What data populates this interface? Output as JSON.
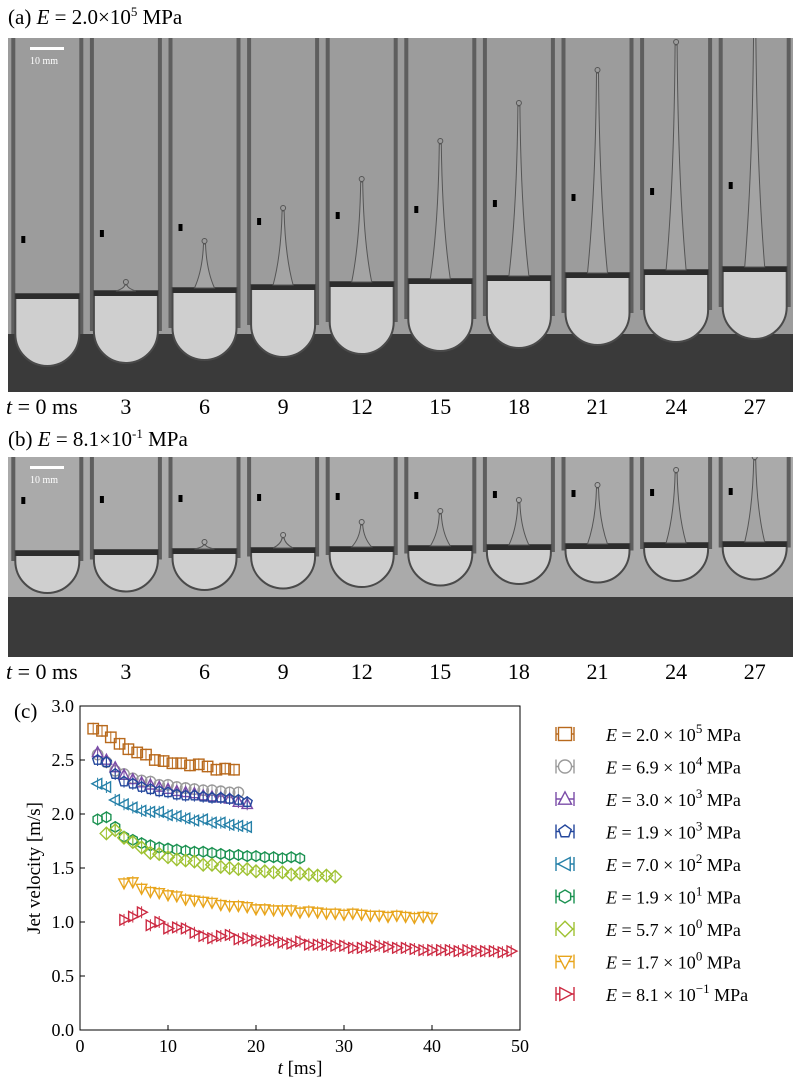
{
  "panel_a": {
    "label_prefix": "(a) ",
    "var": "E",
    "value_text": " = 2.0×10",
    "exp": "5",
    "unit": " MPa",
    "scale_bar": "10 mm",
    "time_label_var": "t",
    "time_label_rest": " = 0 ms",
    "times": [
      "3",
      "6",
      "9",
      "12",
      "15",
      "18",
      "21",
      "24",
      "27"
    ]
  },
  "panel_b": {
    "label_prefix": "(b) ",
    "var": "E",
    "value_text": " = 8.1×10",
    "exp": "-1",
    "unit": " MPa",
    "scale_bar": "10 mm",
    "time_label_var": "t",
    "time_label_rest": " = 0 ms",
    "times": [
      "3",
      "6",
      "9",
      "12",
      "15",
      "18",
      "21",
      "24",
      "27"
    ]
  },
  "colors": {
    "background_a": "#9a9a9a",
    "background_b": "#a8a8a8",
    "liquid": "#c9c9c9"
  },
  "chart_data": {
    "type": "scatter",
    "panel_label": "(c)",
    "xlabel_var": "t",
    "xlabel_unit": " [ms]",
    "ylabel": "Jet velocity [m/s]",
    "xlim": [
      0,
      50
    ],
    "ylim": [
      0.0,
      3.0
    ],
    "xticks": [
      0,
      10,
      20,
      30,
      40,
      50
    ],
    "yticks": [
      "0.0",
      "0.5",
      "1.0",
      "1.5",
      "2.0",
      "2.5",
      "3.0"
    ],
    "legend_position": "right",
    "series": [
      {
        "name": "E = 2.0 × 10^5 MPa",
        "mantissa": "2.0",
        "exp": "5",
        "marker": "square",
        "color": "#b8691c",
        "x": [
          1.5,
          2.5,
          3.5,
          4.5,
          5.5,
          6.5,
          7.5,
          8.5,
          9.5,
          10.5,
          11.5,
          12.5,
          13.5,
          14.5,
          15.5,
          16.5,
          17.5
        ],
        "y": [
          2.79,
          2.77,
          2.71,
          2.65,
          2.6,
          2.57,
          2.55,
          2.5,
          2.49,
          2.47,
          2.47,
          2.45,
          2.46,
          2.44,
          2.41,
          2.42,
          2.41
        ]
      },
      {
        "name": "E = 6.9 × 10^4 MPa",
        "mantissa": "6.9",
        "exp": "4",
        "marker": "circle",
        "color": "#9a9a9a",
        "x": [
          2,
          3,
          4,
          5,
          6,
          7,
          8,
          9,
          10,
          11,
          12,
          13,
          14,
          15,
          16,
          17,
          18
        ],
        "y": [
          2.55,
          2.48,
          2.4,
          2.37,
          2.33,
          2.31,
          2.3,
          2.27,
          2.27,
          2.25,
          2.24,
          2.23,
          2.22,
          2.22,
          2.21,
          2.2,
          2.2
        ]
      },
      {
        "name": "E = 3.0 × 10^3 MPa",
        "mantissa": "3.0",
        "exp": "3",
        "marker": "triangle-up",
        "color": "#7b4ca8",
        "x": [
          2,
          3,
          4,
          5,
          6,
          7,
          8,
          9,
          10,
          11,
          12,
          13,
          14,
          15,
          16,
          17,
          18,
          19
        ],
        "y": [
          2.57,
          2.5,
          2.43,
          2.36,
          2.32,
          2.29,
          2.27,
          2.25,
          2.23,
          2.21,
          2.2,
          2.19,
          2.17,
          2.16,
          2.15,
          2.14,
          2.11,
          2.09
        ]
      },
      {
        "name": "E = 1.9 × 10^3 MPa",
        "mantissa": "1.9",
        "exp": "3",
        "marker": "pentagon",
        "color": "#24479c",
        "x": [
          2,
          3,
          4,
          5,
          6,
          7,
          8,
          9,
          10,
          11,
          12,
          13,
          14,
          15,
          16,
          17,
          18,
          19
        ],
        "y": [
          2.5,
          2.48,
          2.37,
          2.3,
          2.28,
          2.25,
          2.23,
          2.21,
          2.2,
          2.18,
          2.17,
          2.17,
          2.16,
          2.15,
          2.15,
          2.14,
          2.13,
          2.11
        ]
      },
      {
        "name": "E = 7.0 × 10^2 MPa",
        "mantissa": "7.0",
        "exp": "2",
        "marker": "triangle-left",
        "color": "#2580a8",
        "x": [
          2,
          3,
          4,
          5,
          6,
          7,
          8,
          9,
          10,
          11,
          12,
          13,
          14,
          15,
          16,
          17,
          18,
          19
        ],
        "y": [
          2.28,
          2.25,
          2.13,
          2.09,
          2.06,
          2.03,
          2.02,
          2.02,
          1.99,
          1.98,
          1.96,
          1.94,
          1.95,
          1.92,
          1.92,
          1.9,
          1.89,
          1.88
        ]
      },
      {
        "name": "E = 1.9 × 10^1 MPa",
        "mantissa": "1.9",
        "exp": "1",
        "marker": "hexagon",
        "color": "#1a9150",
        "x": [
          2,
          3,
          4,
          5,
          6,
          7,
          8,
          9,
          10,
          11,
          12,
          13,
          14,
          15,
          16,
          17,
          18,
          19,
          20,
          21,
          22,
          23,
          24,
          25
        ],
        "y": [
          1.95,
          1.97,
          1.88,
          1.79,
          1.76,
          1.73,
          1.71,
          1.69,
          1.68,
          1.67,
          1.66,
          1.65,
          1.65,
          1.64,
          1.63,
          1.62,
          1.62,
          1.61,
          1.61,
          1.6,
          1.6,
          1.59,
          1.6,
          1.59
        ]
      },
      {
        "name": "E = 5.7 × 10^0 MPa",
        "mantissa": "5.7",
        "exp": "0",
        "marker": "diamond",
        "color": "#9fc232",
        "x": [
          3,
          4,
          5,
          6,
          7,
          8,
          9,
          10,
          11,
          12,
          13,
          14,
          15,
          16,
          17,
          18,
          19,
          20,
          21,
          22,
          23,
          24,
          25,
          26,
          27,
          28,
          29
        ],
        "y": [
          1.82,
          1.85,
          1.78,
          1.74,
          1.69,
          1.64,
          1.63,
          1.6,
          1.58,
          1.57,
          1.56,
          1.53,
          1.53,
          1.51,
          1.5,
          1.49,
          1.49,
          1.47,
          1.47,
          1.46,
          1.46,
          1.44,
          1.45,
          1.44,
          1.43,
          1.43,
          1.42
        ]
      },
      {
        "name": "E = 1.7 × 10^0 MPa",
        "mantissa": "1.7",
        "exp": "0",
        "marker": "triangle-down",
        "color": "#e8a51c",
        "x": [
          5,
          6,
          7,
          8,
          9,
          10,
          11,
          12,
          13,
          14,
          15,
          16,
          17,
          18,
          19,
          20,
          21,
          22,
          23,
          24,
          25,
          26,
          27,
          28,
          29,
          30,
          31,
          32,
          33,
          34,
          35,
          36,
          37,
          38,
          39,
          40
        ],
        "y": [
          1.36,
          1.37,
          1.31,
          1.28,
          1.27,
          1.25,
          1.24,
          1.21,
          1.2,
          1.19,
          1.18,
          1.16,
          1.15,
          1.15,
          1.14,
          1.12,
          1.12,
          1.11,
          1.11,
          1.11,
          1.09,
          1.1,
          1.09,
          1.08,
          1.08,
          1.07,
          1.08,
          1.07,
          1.06,
          1.06,
          1.05,
          1.06,
          1.05,
          1.04,
          1.05,
          1.04
        ]
      },
      {
        "name": "E = 8.1 × 10^-1 MPa",
        "mantissa": "8.1",
        "exp": "−1",
        "marker": "triangle-right",
        "color": "#cc2a42",
        "x": [
          5,
          6,
          7,
          8,
          9,
          10,
          11,
          12,
          13,
          14,
          15,
          16,
          17,
          18,
          19,
          20,
          21,
          22,
          23,
          24,
          25,
          26,
          27,
          28,
          29,
          30,
          31,
          32,
          33,
          34,
          35,
          36,
          37,
          38,
          39,
          40,
          41,
          42,
          43,
          44,
          45,
          46,
          47,
          48,
          49
        ],
        "y": [
          1.02,
          1.05,
          1.09,
          0.97,
          1.0,
          0.94,
          0.95,
          0.94,
          0.9,
          0.87,
          0.85,
          0.87,
          0.88,
          0.84,
          0.85,
          0.83,
          0.82,
          0.83,
          0.81,
          0.8,
          0.82,
          0.79,
          0.79,
          0.79,
          0.78,
          0.78,
          0.76,
          0.76,
          0.77,
          0.78,
          0.77,
          0.76,
          0.76,
          0.75,
          0.74,
          0.74,
          0.74,
          0.74,
          0.73,
          0.74,
          0.73,
          0.73,
          0.73,
          0.72,
          0.73
        ]
      }
    ]
  }
}
